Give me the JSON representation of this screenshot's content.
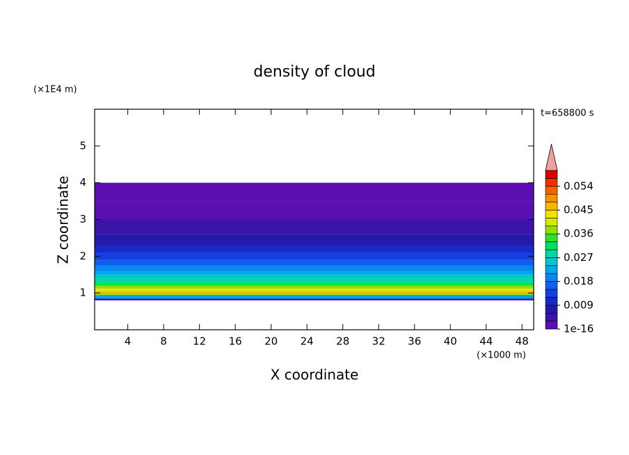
{
  "chart_data": {
    "type": "contour",
    "title": "density of cloud",
    "x_label": "X coordinate",
    "y_label": "Z coordinate",
    "x_unit": "(×1000 m)",
    "y_unit": "(×1E4 m)",
    "time_label": "t=658800 s",
    "xlim": [
      0.3,
      49.3
    ],
    "ylim": [
      0,
      6
    ],
    "xticks": [
      4,
      8,
      12,
      16,
      20,
      24,
      28,
      32,
      36,
      40,
      44,
      48
    ],
    "yticks": [
      1,
      2,
      3,
      4,
      5
    ],
    "z_edges": [
      0.8,
      0.85,
      0.95,
      1.0,
      1.05,
      1.12,
      1.2,
      1.3,
      1.4,
      1.5,
      1.6,
      1.75,
      1.9,
      2.1,
      2.3,
      2.6,
      3.0,
      3.5,
      4.0
    ],
    "density": [
      0.004,
      0.022,
      0.038,
      0.046,
      0.042,
      0.036,
      0.03,
      0.027,
      0.024,
      0.021,
      0.018,
      0.015,
      0.012,
      0.009,
      0.007,
      0.005,
      0.002,
      0.001
    ],
    "colorbar": {
      "lim": [
        0,
        0.06
      ],
      "ticks": [
        {
          "value": 1e-16,
          "label": "1e-16"
        },
        0.009,
        0.018,
        0.027,
        0.036,
        0.045,
        0.054
      ],
      "colors": [
        "#5b0fb0",
        "#3b14a8",
        "#2618a8",
        "#1a28c8",
        "#1440e0",
        "#1060f0",
        "#0a86f0",
        "#00a8e8",
        "#00c8d0",
        "#00d8a0",
        "#00e060",
        "#30e020",
        "#90e000",
        "#d8e800",
        "#f8e000",
        "#f8b800",
        "#f89000",
        "#f86000",
        "#f03000",
        "#e00000"
      ],
      "extend_color": "#f0a0a0"
    }
  }
}
